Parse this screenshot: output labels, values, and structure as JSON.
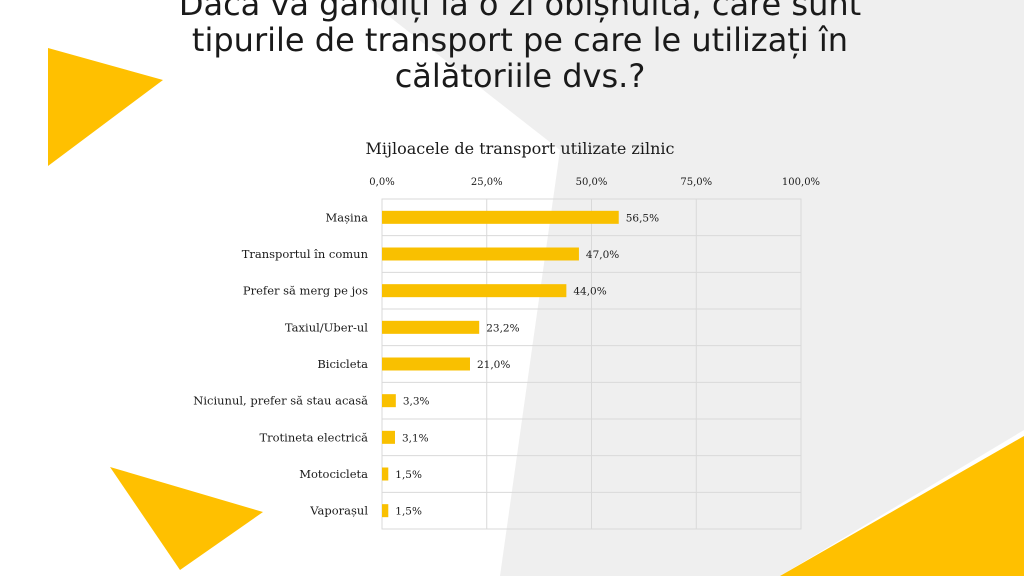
{
  "slide": {
    "title": "Dacă vă gândiți la o zi obișnuită, care sunt tipurile de transport pe care le utilizați în călătoriile dvs.?"
  },
  "colors": {
    "bar": "#F9C000",
    "accent": "#FFC000",
    "background_shape": "#EFEFEF",
    "grid": "#D9D9D9",
    "text": "#1A1A1A"
  },
  "chart_data": {
    "type": "bar",
    "orientation": "horizontal",
    "title": "Mijloacele de transport utilizate zilnic",
    "categories": [
      "Mașina",
      "Transportul în comun",
      "Prefer să merg pe jos",
      "Taxiul/Uber-ul",
      "Bicicleta",
      "Niciunul, prefer să stau acasă",
      "Trotineta electrică",
      "Motocicleta",
      "Vaporașul"
    ],
    "values": [
      56.5,
      47.0,
      44.0,
      23.2,
      21.0,
      3.3,
      3.1,
      1.5,
      1.5
    ],
    "value_labels": [
      "56,5%",
      "47,0%",
      "44,0%",
      "23,2%",
      "21,0%",
      "3,3%",
      "3,1%",
      "1,5%",
      "1,5%"
    ],
    "xlim": [
      0,
      100
    ],
    "x_ticks": [
      0,
      25,
      50,
      75,
      100
    ],
    "x_tick_labels": [
      "0,0%",
      "25,0%",
      "50,0%",
      "75,0%",
      "100,0%"
    ],
    "x_axis_position": "top",
    "grid": true,
    "legend": false
  }
}
